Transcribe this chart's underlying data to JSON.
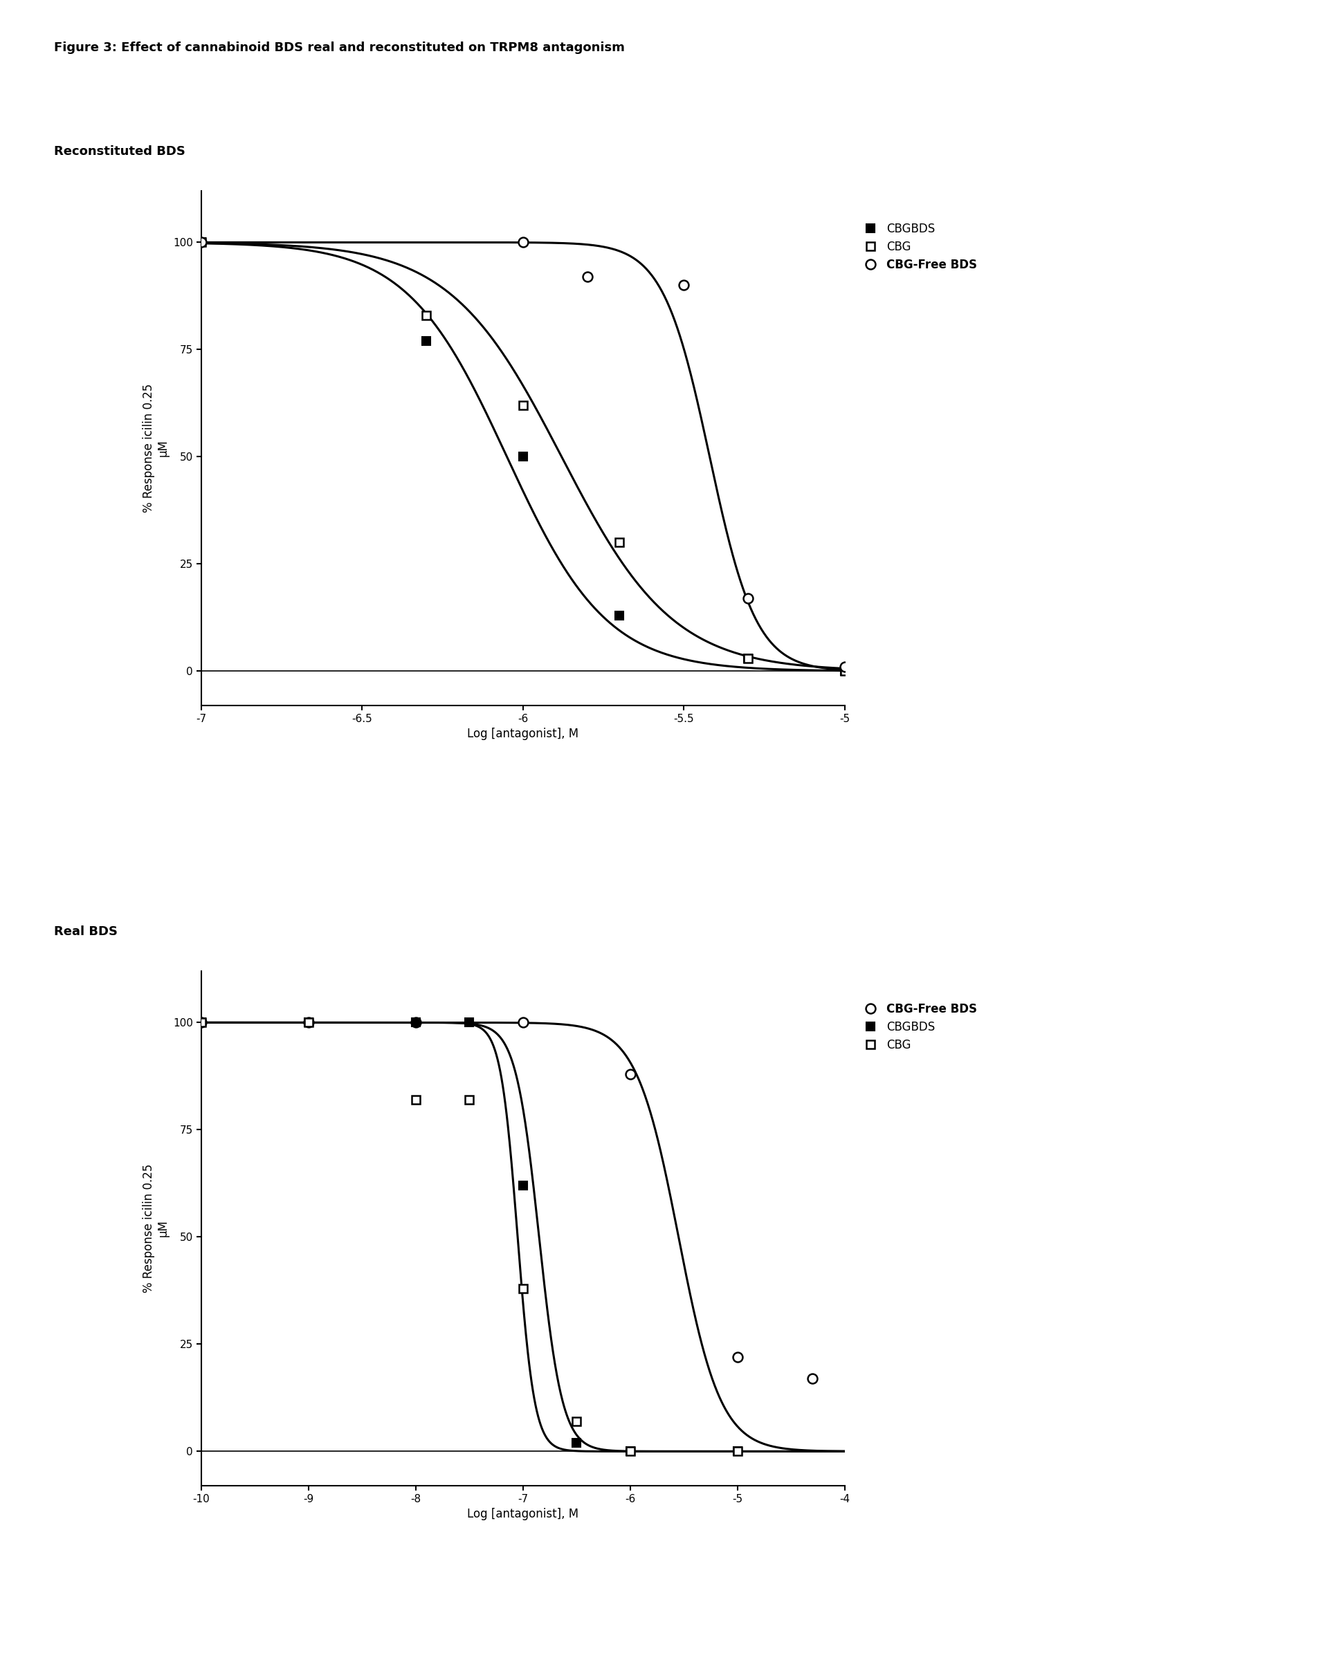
{
  "title": "Figure 3: Effect of cannabinoid BDS real and reconstituted on TRPM8 antagonism",
  "title_fontsize": 13,
  "title_fontweight": "bold",
  "panel1_label": "Reconstituted BDS",
  "panel2_label": "Real BDS",
  "panel_label_fontsize": 13,
  "panel_label_fontweight": "bold",
  "ylabel": "% Response icilin 0.25\nμM",
  "xlabel": "Log [antagonist], M",
  "axis_fontsize": 12,
  "tick_fontsize": 11,
  "panel1": {
    "xlim": [
      -7.0,
      -5.0
    ],
    "ylim": [
      -8,
      112
    ],
    "xticks": [
      -7.0,
      -6.5,
      -6.0,
      -5.5,
      -5.0
    ],
    "yticks": [
      0,
      25,
      50,
      75,
      100
    ],
    "series": [
      {
        "name": "CBGBDS",
        "marker": "s",
        "fillstyle": "full",
        "markersize": 9,
        "data_x": [
          -7.0,
          -6.3,
          -6.0,
          -5.7,
          -5.3,
          -5.0
        ],
        "data_y": [
          100,
          77,
          50,
          13,
          3,
          0
        ],
        "ec50_log": -6.05,
        "hill": 2.8
      },
      {
        "name": "CBG",
        "marker": "s",
        "fillstyle": "none",
        "markersize": 9,
        "data_x": [
          -7.0,
          -6.3,
          -6.0,
          -5.7,
          -5.3,
          -5.0
        ],
        "data_y": [
          100,
          83,
          62,
          30,
          3,
          0
        ],
        "ec50_log": -5.88,
        "hill": 2.5
      },
      {
        "name": "CBG-Free BDS",
        "marker": "o",
        "fillstyle": "none",
        "markersize": 10,
        "data_x": [
          -7.0,
          -6.0,
          -5.8,
          -5.5,
          -5.3,
          -5.0
        ],
        "data_y": [
          100,
          100,
          92,
          90,
          17,
          1
        ],
        "ec50_log": -5.42,
        "hill": 6.0
      }
    ],
    "legend_order": [
      0,
      1,
      2
    ],
    "legend_names": [
      "CBGBDS",
      "CBG",
      "CBG-Free BDS"
    ],
    "legend_bold": [
      false,
      false,
      true
    ]
  },
  "panel2": {
    "xlim": [
      -10.0,
      -4.0
    ],
    "ylim": [
      -8,
      112
    ],
    "xticks": [
      -10,
      -9,
      -8,
      -7,
      -6,
      -5,
      -4
    ],
    "yticks": [
      0,
      25,
      50,
      75,
      100
    ],
    "series": [
      {
        "name": "CBG-Free BDS",
        "marker": "o",
        "fillstyle": "none",
        "markersize": 10,
        "data_x": [
          -10,
          -9,
          -8,
          -7,
          -6,
          -5,
          -4.3
        ],
        "data_y": [
          100,
          100,
          100,
          100,
          88,
          22,
          17
        ],
        "ec50_log": -5.55,
        "hill": 2.2
      },
      {
        "name": "CBGBDS",
        "marker": "s",
        "fillstyle": "full",
        "markersize": 9,
        "data_x": [
          -10,
          -9,
          -8,
          -7.5,
          -7.0,
          -6.5,
          -6.0,
          -5.0
        ],
        "data_y": [
          100,
          100,
          100,
          100,
          62,
          2,
          0,
          0
        ],
        "ec50_log": -7.05,
        "hill": 5.5
      },
      {
        "name": "CBG",
        "marker": "s",
        "fillstyle": "none",
        "markersize": 9,
        "data_x": [
          -10,
          -9,
          -8,
          -7.5,
          -7.0,
          -6.5,
          -6.0,
          -5.0
        ],
        "data_y": [
          100,
          100,
          82,
          82,
          38,
          7,
          0,
          0
        ],
        "ec50_log": -6.85,
        "hill": 4.0
      }
    ],
    "legend_order": [
      0,
      1,
      2
    ],
    "legend_names": [
      "CBG-Free BDS",
      "CBGBDS",
      "CBG"
    ],
    "legend_bold": [
      true,
      false,
      false
    ]
  },
  "background_color": "#ffffff",
  "line_color": "black",
  "line_width": 2.2
}
